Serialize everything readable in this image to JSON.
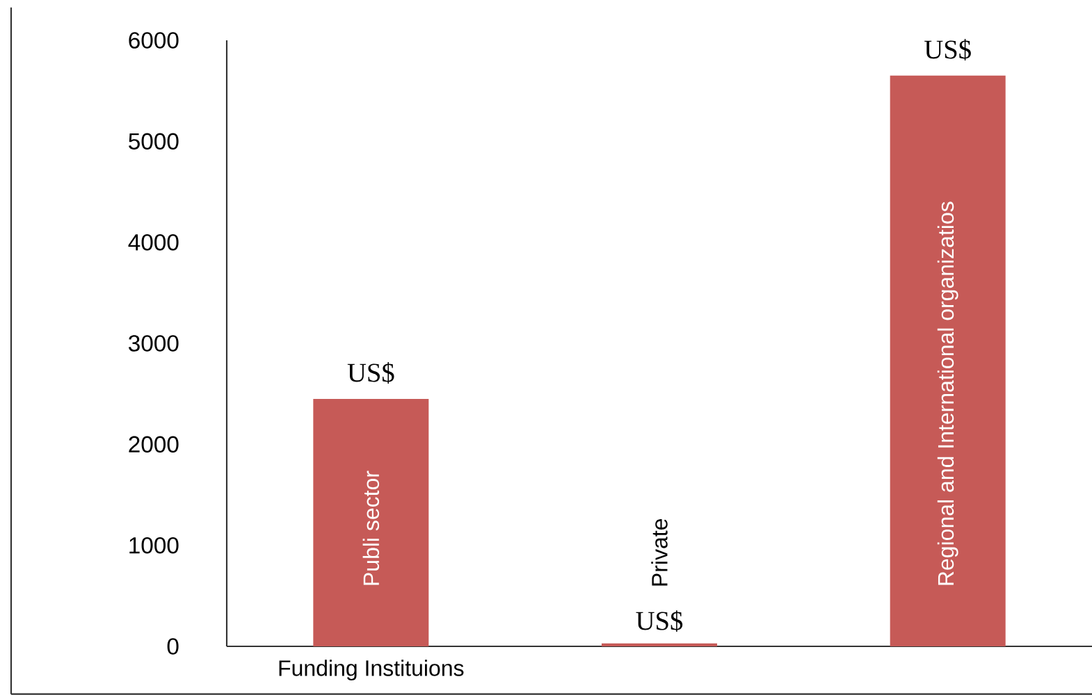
{
  "chart_data": {
    "type": "bar",
    "xlabel": "Funding Instituions",
    "categories": [
      "Publi sector",
      "Private",
      "Regional and International  organizatios"
    ],
    "values": [
      2450,
      30,
      5650
    ],
    "value_labels": [
      "US$",
      "US$",
      "US$"
    ],
    "color": "#c65a57",
    "ylim": [
      0,
      6000
    ],
    "yticks": [
      0,
      1000,
      2000,
      3000,
      4000,
      5000,
      6000
    ],
    "grid": false
  }
}
